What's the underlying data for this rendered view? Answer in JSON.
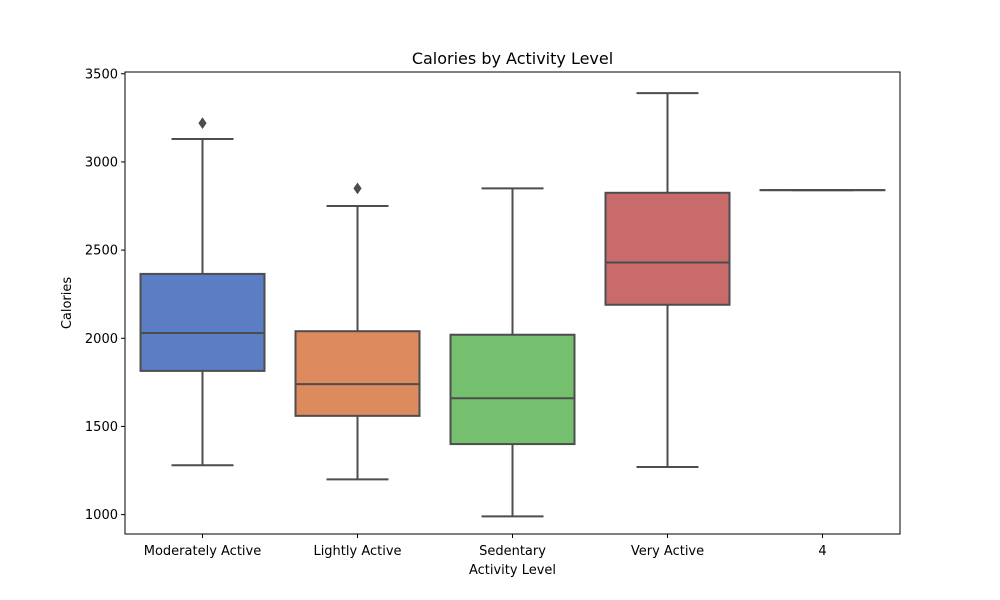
{
  "chart_data": {
    "type": "box",
    "title": "Calories by Activity Level",
    "xlabel": "Activity Level",
    "ylabel": "Calories",
    "categories": [
      "Moderately Active",
      "Lightly Active",
      "Sedentary",
      "Very Active",
      "4"
    ],
    "ylim": [
      890,
      3510
    ],
    "yticks": [
      1000,
      1500,
      2000,
      2500,
      3000,
      3500
    ],
    "grid": false,
    "boxes": [
      {
        "category": "Moderately Active",
        "whisker_low": 1280,
        "q1": 1815,
        "median": 2030,
        "q3": 2365,
        "whisker_high": 3130,
        "outliers": [
          3220
        ],
        "color": "#5a7dc4"
      },
      {
        "category": "Lightly Active",
        "whisker_low": 1200,
        "q1": 1560,
        "median": 1740,
        "q3": 2040,
        "whisker_high": 2750,
        "outliers": [
          2850
        ],
        "color": "#dc8a5e"
      },
      {
        "category": "Sedentary",
        "whisker_low": 990,
        "q1": 1400,
        "median": 1660,
        "q3": 2020,
        "whisker_high": 2850,
        "outliers": [],
        "color": "#74c06e"
      },
      {
        "category": "Very Active",
        "whisker_low": 1270,
        "q1": 2190,
        "median": 2430,
        "q3": 2825,
        "whisker_high": 3390,
        "outliers": [],
        "color": "#c96b6b"
      },
      {
        "category": "4",
        "whisker_low": 2840,
        "q1": 2840,
        "median": 2840,
        "q3": 2840,
        "whisker_high": 2840,
        "outliers": [],
        "color": "#8d74b8"
      }
    ]
  }
}
